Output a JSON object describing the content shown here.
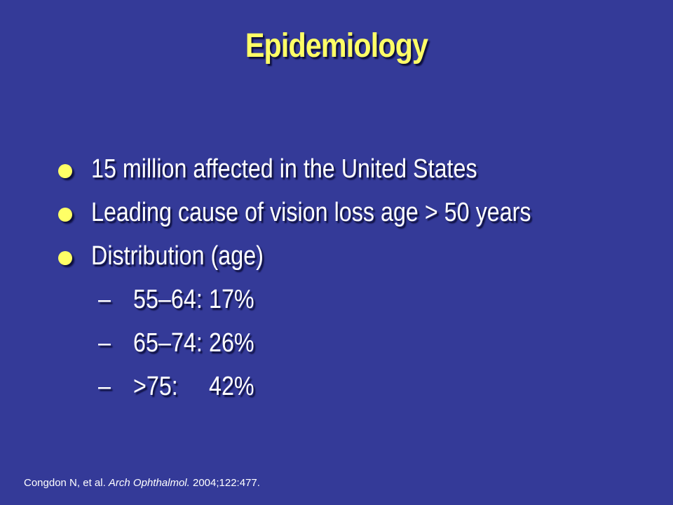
{
  "slide": {
    "title": "Epidemiology",
    "bullets": [
      "15 million affected in the United States",
      "Leading cause of vision loss age > 50 years",
      "Distribution (age)"
    ],
    "distribution": [
      {
        "dash": "–",
        "range": "55–64:",
        "percent": "17%"
      },
      {
        "dash": "–",
        "range": "65–74:",
        "percent": "26%"
      },
      {
        "dash": "–",
        "range": ">75:",
        "percent": "42%"
      }
    ],
    "citation": {
      "authors": "Congdon N, et al.",
      "journal": "Arch Ophthalmol.",
      "details": "2004;122:477."
    }
  },
  "colors": {
    "background": "#343a98",
    "title": "#ffff66",
    "text": "#ffffff",
    "bullet": "#ffff66"
  }
}
